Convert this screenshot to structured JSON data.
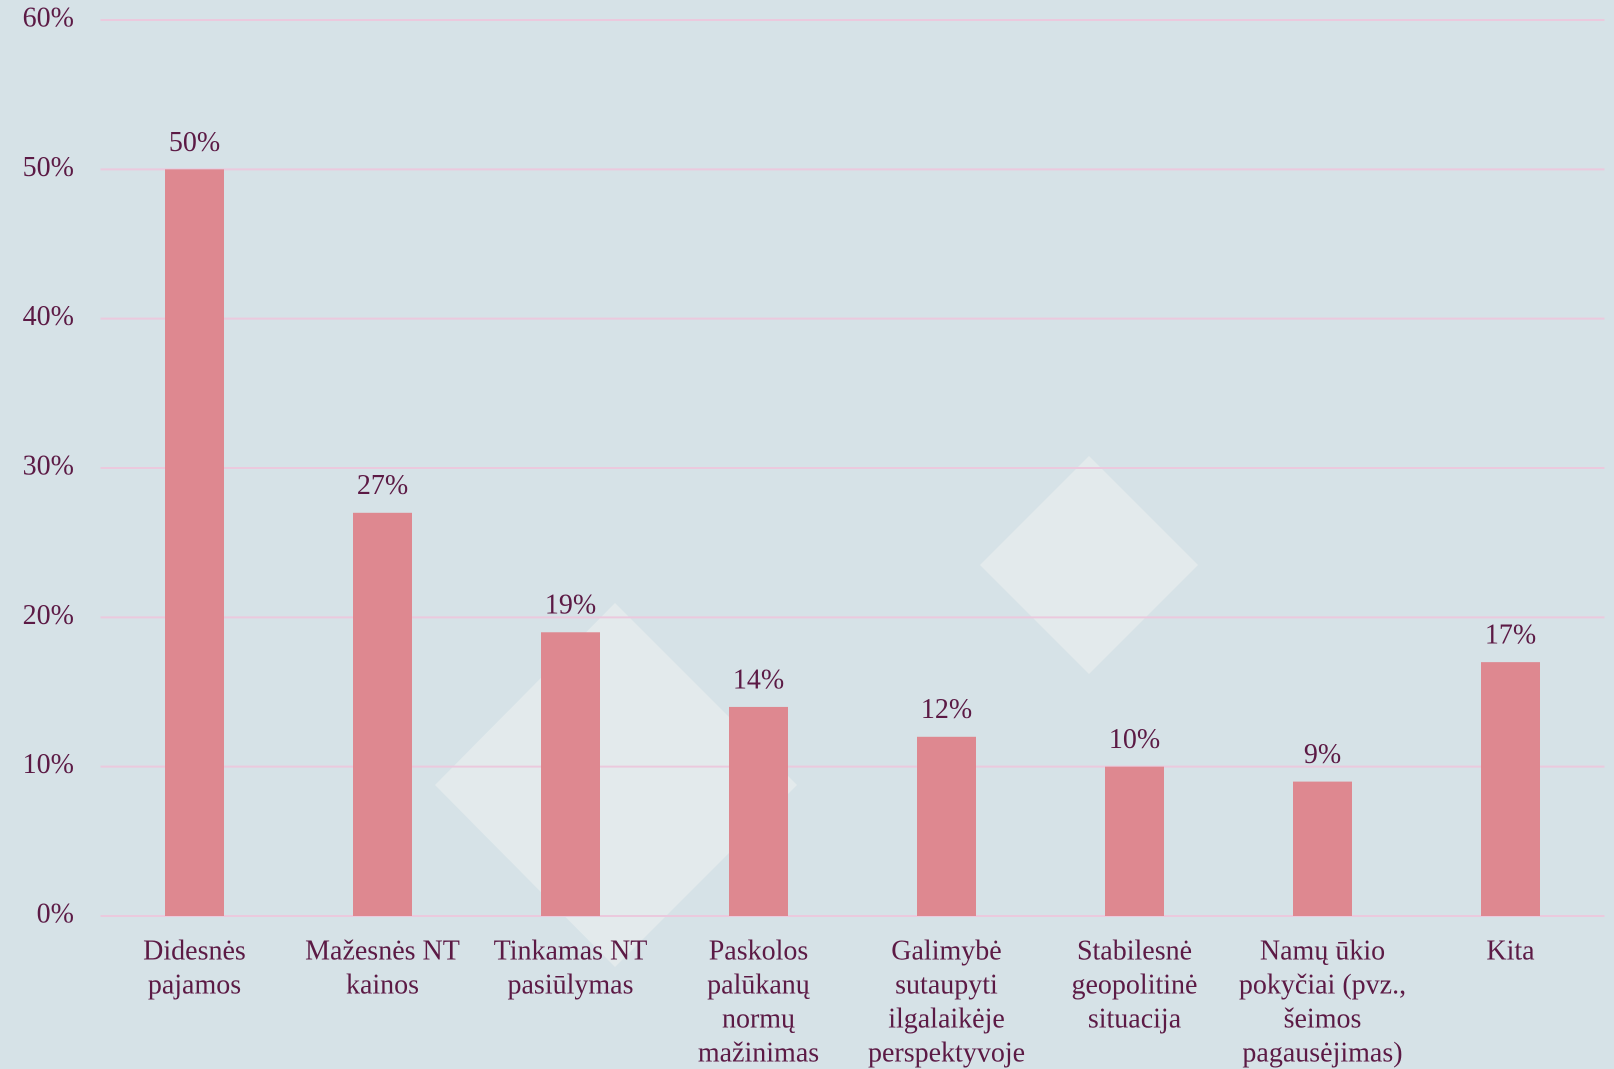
{
  "chart_data": {
    "type": "bar",
    "categories": [
      [
        "Didesnės",
        "pajamos"
      ],
      [
        "Mažesnės NT",
        "kainos"
      ],
      [
        "Tinkamas NT",
        "pasiūlymas"
      ],
      [
        "Paskolos",
        "palūkanų",
        "normų",
        "mažinimas"
      ],
      [
        "Galimybė",
        "sutaupyti",
        "ilgalaikėje",
        "perspektyvoje"
      ],
      [
        "Stabilesnė",
        "geopolitinė",
        "situacija"
      ],
      [
        "Namų ūkio",
        "pokyčiai (pvz.,",
        "šeimos",
        "pagausėjimas)"
      ],
      [
        "Kita"
      ]
    ],
    "values": [
      50,
      27,
      19,
      14,
      12,
      10,
      9,
      17
    ],
    "value_labels": [
      "50%",
      "27%",
      "19%",
      "14%",
      "12%",
      "10%",
      "9%",
      "17%"
    ],
    "color": "#de8890",
    "ylim": [
      0,
      60
    ],
    "yticks": [
      {
        "value": 0,
        "label": "0%"
      },
      {
        "value": 10,
        "label": "10%"
      },
      {
        "value": 20,
        "label": "20%"
      },
      {
        "value": 30,
        "label": "30%"
      },
      {
        "value": 40,
        "label": "40%"
      },
      {
        "value": 50,
        "label": "50%"
      },
      {
        "value": 60,
        "label": "60%"
      }
    ],
    "grid": true
  }
}
